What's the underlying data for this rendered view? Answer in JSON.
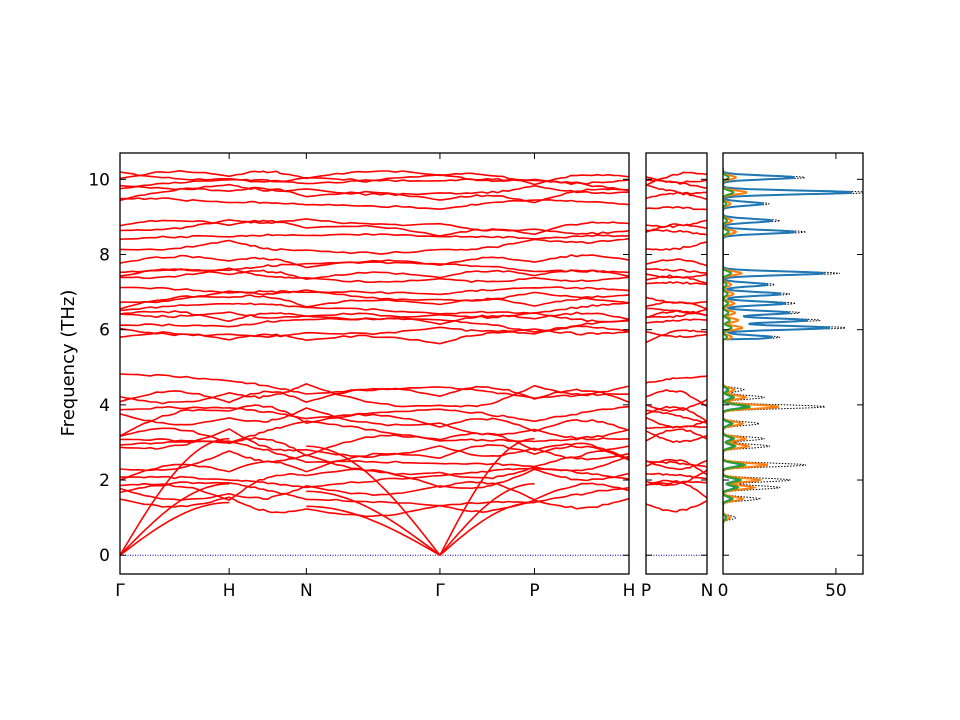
{
  "chart_data": [
    {
      "type": "line",
      "name": "band-structure",
      "ylabel": "Frequency (THz)",
      "ylim": [
        -0.5,
        10.7
      ],
      "yticks": [
        0,
        2,
        4,
        6,
        8,
        10
      ],
      "segments": [
        {
          "labels": [
            "Γ",
            "H",
            "N",
            "Γ",
            "P",
            "H"
          ],
          "x": [
            0,
            1,
            1.707,
            2.931,
            3.797,
            4.663
          ]
        },
        {
          "labels": [
            "P",
            "N"
          ],
          "x": [
            0,
            0.5
          ]
        }
      ],
      "series_color": "#ff0000",
      "zero_line_color": "#0000cc",
      "optical_bands_thz": [
        5.8,
        5.95,
        6.1,
        6.25,
        6.4,
        6.55,
        6.7,
        6.9,
        7.1,
        7.3,
        7.5,
        7.65,
        7.8,
        8.25,
        8.5,
        8.65,
        8.8,
        9.35,
        9.55,
        9.7,
        9.85,
        10.0,
        10.1
      ],
      "mid_bands_thz": [
        1.5,
        1.65,
        1.8,
        1.95,
        2.15,
        2.35,
        2.55,
        2.7,
        2.9,
        3.05,
        3.3,
        3.5,
        3.65,
        3.85,
        4.05,
        4.25,
        4.5
      ]
    },
    {
      "type": "line",
      "name": "projected-dos",
      "xlim": [
        0,
        62
      ],
      "xticks": [
        0,
        50
      ],
      "ylim": [
        -0.5,
        10.7
      ],
      "series": [
        {
          "color": "#000000",
          "style": "dotted",
          "weight": 1.15
        },
        {
          "color": "#1f77b4",
          "style": "solid",
          "weight": 1.0
        },
        {
          "color": "#ff7f0e",
          "style": "solid",
          "weight": 0.62
        },
        {
          "color": "#2ca02c",
          "style": "solid",
          "weight": 0.3
        }
      ],
      "peaks": {
        "high": [
          [
            5.8,
            22
          ],
          [
            6.05,
            48
          ],
          [
            6.25,
            38
          ],
          [
            6.45,
            30
          ],
          [
            6.7,
            28
          ],
          [
            6.95,
            26
          ],
          [
            7.2,
            20
          ],
          [
            7.5,
            45
          ],
          [
            8.6,
            32
          ],
          [
            8.9,
            22
          ],
          [
            9.35,
            18
          ],
          [
            9.65,
            58
          ],
          [
            10.05,
            32
          ]
        ],
        "low": [
          [
            1.0,
            5
          ],
          [
            1.5,
            14
          ],
          [
            1.8,
            22
          ],
          [
            2.0,
            26
          ],
          [
            2.4,
            32
          ],
          [
            2.9,
            18
          ],
          [
            3.1,
            16
          ],
          [
            3.5,
            14
          ],
          [
            3.95,
            40
          ],
          [
            4.2,
            16
          ],
          [
            4.4,
            8
          ]
        ]
      }
    }
  ]
}
